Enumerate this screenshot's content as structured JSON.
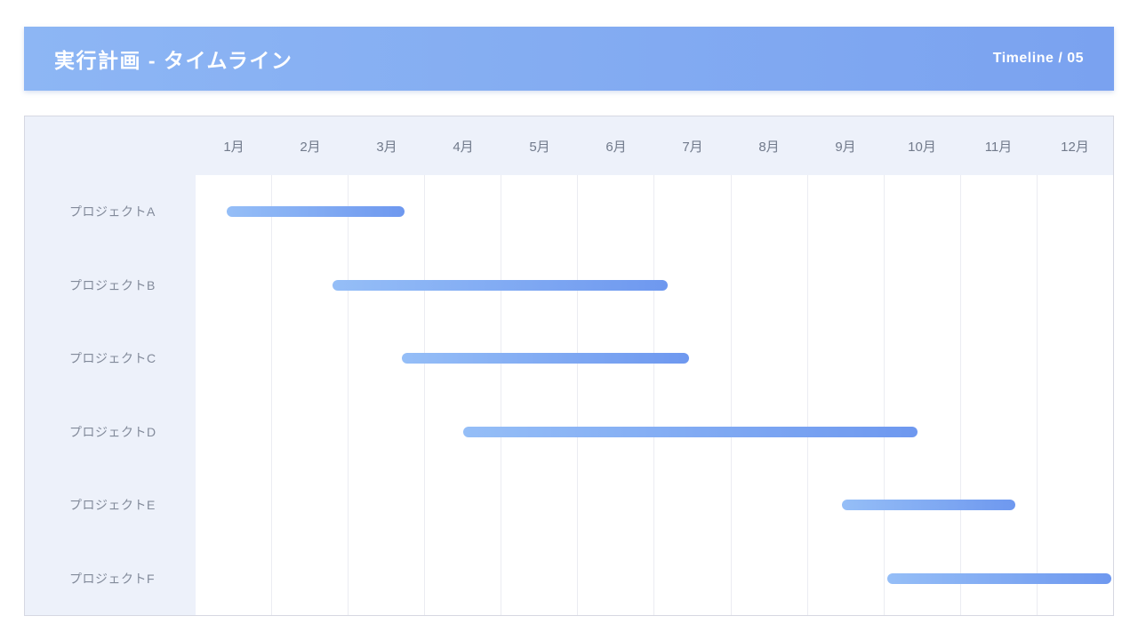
{
  "header": {
    "title": "実行計画 - タイムライン",
    "page_label": "Timeline / 05"
  },
  "chart_data": {
    "type": "gantt",
    "title": "実行計画 - タイムライン",
    "x_unit": "month",
    "xlim": [
      0,
      12
    ],
    "grid": "vertical-only",
    "months": [
      "1月",
      "2月",
      "3月",
      "4月",
      "5月",
      "6月",
      "7月",
      "8月",
      "9月",
      "10月",
      "11月",
      "12月"
    ],
    "rows": [
      {
        "label": "プロジェクトA",
        "start_month": 0.41,
        "end_month": 2.73
      },
      {
        "label": "プロジェクトB",
        "start_month": 1.79,
        "end_month": 6.17
      },
      {
        "label": "プロジェクトC",
        "start_month": 2.7,
        "end_month": 6.45
      },
      {
        "label": "プロジェクトD",
        "start_month": 3.5,
        "end_month": 9.44
      },
      {
        "label": "プロジェクトE",
        "start_month": 8.45,
        "end_month": 10.72
      },
      {
        "label": "プロジェクトF",
        "start_month": 9.05,
        "end_month": 11.98
      }
    ],
    "colors": {
      "header_gradient_start": "#8db6f4",
      "header_gradient_end": "#7aa2f0",
      "bar_gradient_start": "#95bef7",
      "bar_gradient_end": "#6e98ef",
      "panel_background": "#edf1fa",
      "plot_background": "#ffffff",
      "gridline": "#ebecf2",
      "month_text": "#717a8b",
      "label_text": "#828a9a"
    }
  }
}
